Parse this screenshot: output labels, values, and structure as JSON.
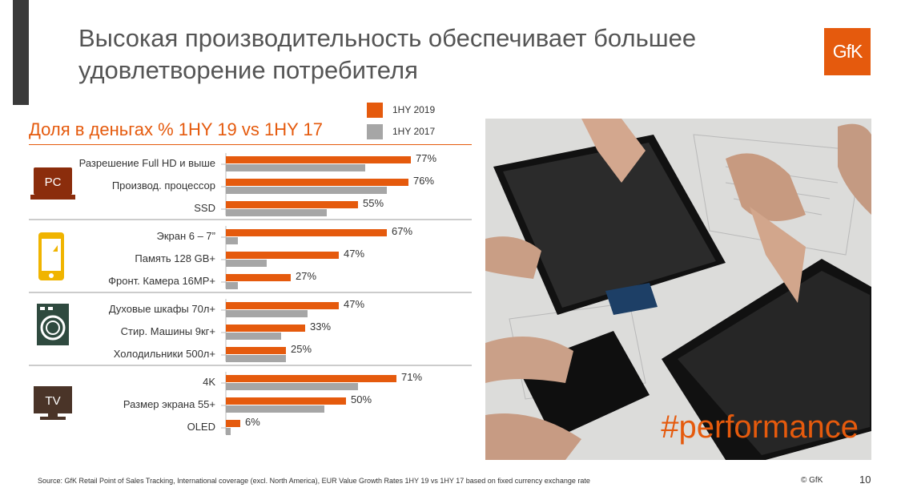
{
  "slide": {
    "title": "Высокая производительность  обеспечивает большее удовлетворение потребителя",
    "logo_text": "GfK",
    "hashtag": "#performance",
    "source": "Source: GfK Retail Point of Sales Tracking, International coverage (excl. North America), EUR Value Growth Rates 1HY 19 vs 1HY 17 based on fixed currency exchange rate",
    "copyright": "© GfK",
    "page_number": "10",
    "icons": {
      "pc": {
        "name": "laptop-icon",
        "label": "PC"
      },
      "phone": {
        "name": "smartphone-icon"
      },
      "washer": {
        "name": "washing-machine-icon"
      },
      "tv": {
        "name": "tv-icon",
        "label": "TV"
      }
    }
  },
  "colors": {
    "accent": "#e55a0d",
    "secondary": "#a6a6a6",
    "dark": "#3a3a3a"
  },
  "chart_data": {
    "type": "bar",
    "orientation": "horizontal",
    "title": "Доля в деньгах %  1HY 19 vs 1HY 17",
    "legend": [
      "1HY 2019",
      "1HY 2017"
    ],
    "groups": [
      {
        "icon": "pc",
        "categories": [
          "Разрешение Full HD и выше",
          "Производ. процессор",
          "SSD"
        ]
      },
      {
        "icon": "phone",
        "categories": [
          "Экран 6 – 7”",
          "Память 128 GB+",
          "Фронт. Камера 16MP+"
        ]
      },
      {
        "icon": "washer",
        "categories": [
          "Духовые шкафы 70л+",
          "Стир. Машины 9кг+",
          "Холодильники 500л+"
        ]
      },
      {
        "icon": "tv",
        "categories": [
          "4K",
          "Размер экрана 55+",
          "OLED"
        ]
      }
    ],
    "series": [
      {
        "name": "1HY 2019",
        "color": "#e55a0d",
        "values": [
          77,
          76,
          55,
          67,
          47,
          27,
          47,
          33,
          25,
          71,
          50,
          6
        ]
      },
      {
        "name": "1HY 2017",
        "color": "#a6a6a6",
        "values": [
          58,
          67,
          42,
          5,
          17,
          5,
          34,
          23,
          25,
          55,
          41,
          2
        ]
      }
    ],
    "value_labels": [
      "77%",
      "76%",
      "55%",
      "67%",
      "47%",
      "27%",
      "47%",
      "33%",
      "25%",
      "71%",
      "50%",
      "6%"
    ],
    "xlim": [
      0,
      100
    ],
    "grid": false
  }
}
